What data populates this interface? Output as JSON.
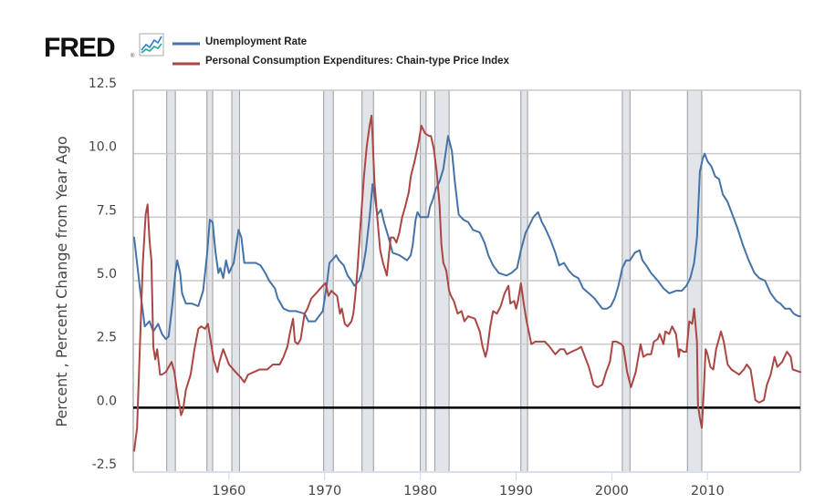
{
  "logo": {
    "text": "FRED",
    "registered": "®",
    "icon": "line-chart-icon"
  },
  "colors": {
    "unemployment": "#4572a7",
    "pce": "#aa4643",
    "recession": "#e1e5ea",
    "grid": "#c8c8c8",
    "zero_line": "#000000",
    "axis": "#ccd6eb"
  },
  "chart_data": {
    "type": "line",
    "title": "",
    "xlabel": "",
    "ylabel": "Percent , Percent Change from Year Ago",
    "xlim": [
      1950.0,
      2019.7
    ],
    "ylim": [
      -2.5,
      12.5
    ],
    "grid": true,
    "legend_position": "top-left",
    "y_ticks": [
      {
        "value": 12.5,
        "label": "12.5"
      },
      {
        "value": 10.0,
        "label": "10.0"
      },
      {
        "value": 7.5,
        "label": "7.5"
      },
      {
        "value": 5.0,
        "label": "5.0"
      },
      {
        "value": 2.5,
        "label": "2.5"
      },
      {
        "value": 0.0,
        "label": "0.0"
      },
      {
        "value": -2.5,
        "label": "-2.5"
      }
    ],
    "x_ticks": [
      {
        "value": 1960,
        "label": "1960"
      },
      {
        "value": 1970,
        "label": "1970"
      },
      {
        "value": 1980,
        "label": "1980"
      },
      {
        "value": 1990,
        "label": "1990"
      },
      {
        "value": 2000,
        "label": "2000"
      },
      {
        "value": 2010,
        "label": "2010"
      }
    ],
    "reference_line": 0.0,
    "recessions": [
      [
        1953.5,
        1954.4
      ],
      [
        1957.7,
        1958.3
      ],
      [
        1960.3,
        1961.1
      ],
      [
        1969.9,
        1970.9
      ],
      [
        1973.9,
        1975.1
      ],
      [
        1980.0,
        1980.6
      ],
      [
        1981.5,
        1983.0
      ],
      [
        1990.5,
        1991.2
      ],
      [
        2001.1,
        2001.9
      ],
      [
        2007.9,
        2009.4
      ]
    ],
    "series": [
      {
        "name": "Unemployment Rate",
        "color": "#4572a7",
        "x": [
          1950.1,
          1950.7,
          1951.2,
          1951.7,
          1952.1,
          1952.6,
          1953.0,
          1953.4,
          1953.7,
          1954.1,
          1954.4,
          1954.6,
          1954.9,
          1955.1,
          1955.5,
          1956.1,
          1956.8,
          1957.3,
          1957.7,
          1958.0,
          1958.3,
          1958.6,
          1958.9,
          1959.1,
          1959.4,
          1959.7,
          1960.0,
          1960.5,
          1960.8,
          1961.0,
          1961.3,
          1961.6,
          1962.2,
          1962.8,
          1963.3,
          1963.8,
          1964.2,
          1964.8,
          1965.1,
          1965.7,
          1966.3,
          1967.0,
          1967.9,
          1968.3,
          1969.0,
          1969.6,
          1969.8,
          1970.2,
          1970.5,
          1971.0,
          1971.2,
          1971.5,
          1972.0,
          1972.4,
          1972.8,
          1973.1,
          1973.6,
          1974.0,
          1974.3,
          1974.7,
          1975.0,
          1975.2,
          1975.5,
          1975.9,
          1976.2,
          1976.6,
          1977.1,
          1977.8,
          1978.6,
          1979.0,
          1979.2,
          1979.5,
          1979.7,
          1980.0,
          1980.8,
          1981.0,
          1981.3,
          1981.6,
          1982.0,
          1982.4,
          1982.9,
          1983.3,
          1983.6,
          1984.0,
          1984.5,
          1985.0,
          1985.5,
          1986.2,
          1986.7,
          1987.1,
          1987.6,
          1988.2,
          1989.0,
          1989.5,
          1990.1,
          1990.5,
          1991.0,
          1991.3,
          1991.8,
          1992.3,
          1992.7,
          1993.0,
          1993.6,
          1994.1,
          1994.5,
          1995.0,
          1995.5,
          1996.0,
          1996.5,
          1997.0,
          1997.6,
          1998.2,
          1998.6,
          1999.0,
          1999.5,
          1999.9,
          2000.3,
          2000.7,
          2001.1,
          2001.5,
          2001.9,
          2002.4,
          2002.9,
          2003.2,
          2003.6,
          2004.1,
          2004.8,
          2005.4,
          2006.0,
          2006.7,
          2007.3,
          2007.8,
          2008.2,
          2008.6,
          2008.9,
          2009.2,
          2009.5,
          2009.7,
          2010.0,
          2010.4,
          2010.8,
          2011.2,
          2011.6,
          2012.1,
          2012.6,
          2013.1,
          2013.7,
          2014.3,
          2014.9,
          2015.4,
          2016.0,
          2016.6,
          2017.2,
          2017.6,
          2018.1,
          2018.6,
          2019.0,
          2019.5,
          2019.7
        ],
        "y": [
          6.7,
          4.7,
          3.2,
          3.4,
          3.0,
          3.3,
          2.9,
          2.7,
          2.8,
          4.1,
          5.3,
          5.8,
          5.3,
          4.5,
          4.1,
          4.1,
          4.0,
          4.6,
          6.0,
          7.4,
          7.3,
          6.1,
          5.3,
          5.5,
          5.1,
          5.8,
          5.3,
          5.7,
          6.5,
          7.0,
          6.7,
          5.7,
          5.7,
          5.7,
          5.6,
          5.3,
          5.0,
          4.7,
          4.3,
          3.9,
          3.8,
          3.8,
          3.7,
          3.4,
          3.4,
          3.7,
          3.8,
          4.8,
          5.7,
          5.9,
          6.0,
          5.8,
          5.6,
          5.2,
          5.0,
          4.8,
          5.0,
          5.5,
          6.2,
          7.5,
          8.8,
          8.4,
          7.6,
          7.8,
          7.3,
          6.8,
          6.1,
          6.0,
          5.8,
          6.0,
          6.4,
          7.4,
          7.7,
          7.5,
          7.5,
          7.9,
          8.2,
          8.6,
          8.9,
          9.4,
          10.7,
          10.1,
          8.9,
          7.6,
          7.4,
          7.3,
          7.0,
          6.9,
          6.5,
          6.0,
          5.6,
          5.3,
          5.2,
          5.3,
          5.5,
          6.2,
          6.9,
          7.1,
          7.5,
          7.7,
          7.3,
          7.1,
          6.6,
          6.1,
          5.6,
          5.7,
          5.4,
          5.2,
          5.1,
          4.7,
          4.5,
          4.3,
          4.1,
          3.9,
          3.9,
          4.0,
          4.3,
          4.8,
          5.5,
          5.8,
          5.8,
          6.1,
          6.2,
          5.8,
          5.6,
          5.3,
          5.0,
          4.7,
          4.5,
          4.6,
          4.6,
          4.8,
          5.1,
          5.7,
          6.7,
          9.3,
          9.8,
          10.0,
          9.7,
          9.5,
          9.1,
          9.0,
          8.4,
          8.1,
          7.6,
          7.1,
          6.4,
          5.8,
          5.3,
          5.1,
          5.0,
          4.5,
          4.2,
          4.1,
          3.9,
          3.9,
          3.7,
          3.6,
          3.6
        ]
      },
      {
        "name": "Personal Consumption Expenditures: Chain-type Price Index",
        "color": "#aa4643",
        "x": [
          1950.1,
          1950.4,
          1950.7,
          1951.0,
          1951.3,
          1951.5,
          1951.7,
          1951.9,
          1952.1,
          1952.3,
          1952.5,
          1952.8,
          1953.0,
          1953.4,
          1954.0,
          1954.3,
          1954.6,
          1955.0,
          1955.2,
          1955.5,
          1956.0,
          1956.4,
          1956.8,
          1957.1,
          1957.5,
          1957.8,
          1958.1,
          1958.4,
          1958.8,
          1959.0,
          1959.4,
          1960.0,
          1960.7,
          1961.2,
          1961.6,
          1962.0,
          1962.6,
          1963.2,
          1964.0,
          1964.6,
          1965.3,
          1965.7,
          1966.1,
          1966.4,
          1966.7,
          1966.9,
          1967.2,
          1967.5,
          1967.9,
          1968.2,
          1968.6,
          1969.1,
          1969.8,
          1970.1,
          1970.4,
          1970.7,
          1971.3,
          1971.6,
          1971.8,
          1972.1,
          1972.4,
          1972.8,
          1973.0,
          1973.2,
          1973.4,
          1973.6,
          1973.8,
          1974.1,
          1974.4,
          1974.7,
          1974.9,
          1975.0,
          1975.2,
          1975.5,
          1975.8,
          1976.1,
          1976.5,
          1976.9,
          1977.2,
          1977.5,
          1977.8,
          1978.1,
          1978.4,
          1978.8,
          1979.0,
          1979.4,
          1979.8,
          1980.1,
          1980.5,
          1980.9,
          1981.1,
          1981.4,
          1981.7,
          1982.0,
          1982.2,
          1982.4,
          1982.7,
          1983.0,
          1983.2,
          1983.5,
          1983.9,
          1984.3,
          1984.6,
          1985.0,
          1985.7,
          1986.2,
          1986.5,
          1986.8,
          1987.0,
          1987.3,
          1987.6,
          1988.0,
          1988.4,
          1988.8,
          1989.2,
          1989.4,
          1989.8,
          1990.0,
          1990.2,
          1990.5,
          1990.8,
          1991.1,
          1991.6,
          1992.0,
          1992.6,
          1993.0,
          1993.5,
          1994.1,
          1994.6,
          1995.0,
          1995.3,
          1995.8,
          1996.4,
          1996.8,
          1997.2,
          1997.6,
          1998.1,
          1998.5,
          1999.0,
          1999.4,
          1999.8,
          2000.1,
          2000.5,
          2001.0,
          2001.2,
          2001.6,
          2002.0,
          2002.5,
          2003.0,
          2003.3,
          2003.7,
          2004.1,
          2004.4,
          2004.8,
          2005.0,
          2005.4,
          2005.6,
          2006.0,
          2006.3,
          2006.7,
          2007.0,
          2007.1,
          2007.5,
          2007.8,
          2008.1,
          2008.4,
          2008.6,
          2008.9,
          2009.0,
          2009.2,
          2009.4,
          2009.6,
          2009.8,
          2010.0,
          2010.3,
          2010.6,
          2010.9,
          2011.4,
          2011.7,
          2012.1,
          2012.5,
          2012.9,
          2013.3,
          2013.8,
          2014.1,
          2014.5,
          2015.0,
          2015.4,
          2015.9,
          2016.2,
          2016.6,
          2017.0,
          2017.3,
          2017.8,
          2018.3,
          2018.7,
          2018.9,
          2019.7
        ],
        "y": [
          -1.7,
          -0.8,
          2.4,
          5.7,
          7.6,
          8.0,
          6.6,
          5.8,
          2.4,
          1.9,
          2.3,
          1.3,
          1.3,
          1.4,
          1.8,
          1.4,
          0.6,
          -0.3,
          -0.1,
          0.7,
          1.3,
          2.3,
          3.1,
          3.2,
          3.1,
          3.3,
          2.6,
          1.9,
          1.4,
          1.8,
          2.3,
          1.7,
          1.4,
          1.2,
          1.0,
          1.3,
          1.4,
          1.5,
          1.5,
          1.7,
          1.7,
          2.0,
          2.4,
          3.0,
          3.5,
          2.6,
          2.5,
          2.7,
          3.7,
          3.9,
          4.3,
          4.5,
          4.8,
          4.9,
          4.4,
          4.6,
          4.4,
          3.7,
          3.9,
          3.3,
          3.2,
          3.4,
          3.7,
          4.4,
          5.3,
          6.4,
          7.5,
          9.1,
          10.3,
          11.1,
          11.5,
          10.7,
          8.9,
          7.5,
          6.2,
          5.7,
          5.2,
          6.7,
          6.7,
          6.5,
          6.9,
          7.5,
          7.9,
          8.5,
          9.1,
          9.7,
          10.4,
          11.1,
          10.8,
          10.7,
          10.7,
          10.2,
          9.3,
          8.0,
          6.4,
          5.7,
          5.4,
          4.6,
          4.4,
          4.2,
          3.7,
          3.8,
          3.4,
          3.6,
          3.5,
          3.0,
          2.4,
          2.0,
          2.3,
          3.2,
          3.8,
          3.7,
          4.0,
          4.5,
          4.8,
          4.1,
          4.2,
          3.9,
          4.2,
          4.9,
          4.1,
          3.4,
          2.5,
          2.6,
          2.6,
          2.6,
          2.4,
          2.1,
          2.3,
          2.3,
          2.1,
          2.2,
          2.3,
          2.4,
          2.0,
          1.6,
          0.9,
          0.8,
          0.9,
          1.4,
          1.8,
          2.6,
          2.6,
          2.5,
          2.4,
          1.4,
          0.8,
          1.4,
          2.5,
          2.0,
          2.1,
          2.1,
          2.6,
          2.7,
          2.9,
          2.5,
          3.0,
          2.9,
          3.2,
          2.9,
          2.0,
          2.3,
          2.2,
          2.2,
          3.4,
          3.3,
          3.9,
          2.6,
          0.1,
          -0.4,
          -0.8,
          0.6,
          2.3,
          2.1,
          1.6,
          1.5,
          2.3,
          3.0,
          2.6,
          1.7,
          1.5,
          1.4,
          1.3,
          1.5,
          1.7,
          1.5,
          0.3,
          0.2,
          0.3,
          0.9,
          1.3,
          2.0,
          1.6,
          1.8,
          2.2,
          2.0,
          1.5,
          1.4
        ]
      }
    ]
  }
}
